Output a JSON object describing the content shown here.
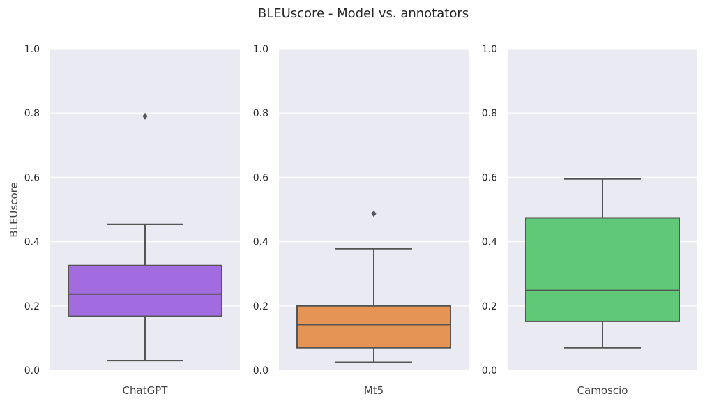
{
  "chart_data": {
    "type": "box",
    "title": "BLEUscore - Model vs. annotators",
    "ylabel": "BLEUscore",
    "ylim": [
      0,
      1.0
    ],
    "y_ticks": [
      "0.0",
      "0.2",
      "0.4",
      "0.6",
      "0.8",
      "1.0"
    ],
    "grid": true,
    "background": "#eaeaf2",
    "line_color": "#555555",
    "panels": [
      {
        "category": "ChatGPT",
        "color": "#a36be0",
        "stats": {
          "whisker_low": 0.03,
          "q1": 0.168,
          "median": 0.237,
          "q3": 0.326,
          "whisker_high": 0.454
        },
        "outliers": [
          0.79
        ]
      },
      {
        "category": "Mt5",
        "color": "#e59455",
        "stats": {
          "whisker_low": 0.025,
          "q1": 0.07,
          "median": 0.142,
          "q3": 0.2,
          "whisker_high": 0.378
        },
        "outliers": [
          0.487
        ]
      },
      {
        "category": "Camoscio",
        "color": "#5fc977",
        "stats": {
          "whisker_low": 0.07,
          "q1": 0.152,
          "median": 0.248,
          "q3": 0.474,
          "whisker_high": 0.595
        },
        "outliers": []
      }
    ]
  }
}
